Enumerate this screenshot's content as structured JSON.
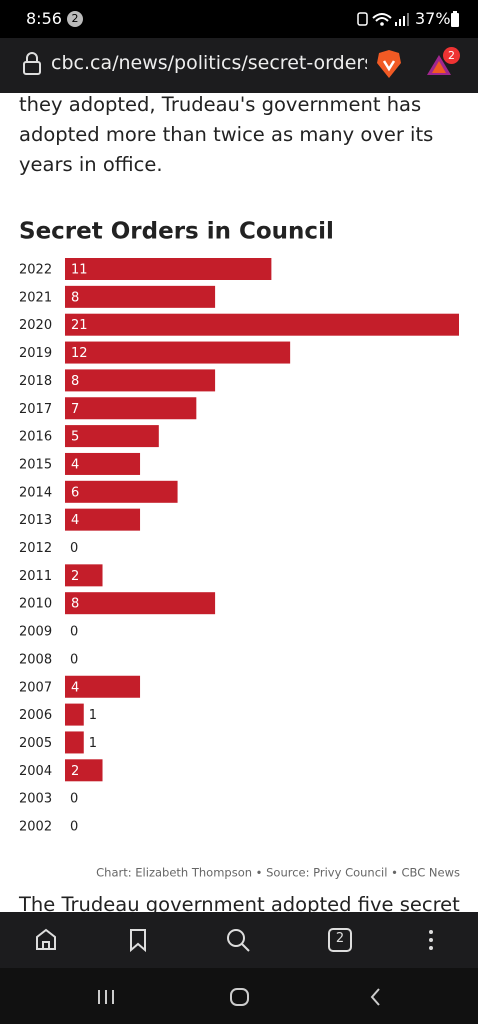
{
  "status_bar": {
    "time": "8:56",
    "notification_count": "2",
    "battery": "37%"
  },
  "browser": {
    "url": "cbc.ca/news/politics/secret-orders",
    "shields_count": "2"
  },
  "article": {
    "paragraph_before": "they adopted, Trudeau's government has adopted more than twice as many over its years in office.",
    "paragraph_after": "The Trudeau government adopted five secret"
  },
  "chart_data": {
    "type": "bar",
    "orientation": "horizontal",
    "title": "Secret Orders in Council",
    "categories": [
      "2022",
      "2021",
      "2020",
      "2019",
      "2018",
      "2017",
      "2016",
      "2015",
      "2014",
      "2013",
      "2012",
      "2011",
      "2010",
      "2009",
      "2008",
      "2007",
      "2006",
      "2005",
      "2004",
      "2003",
      "2002"
    ],
    "values": [
      11,
      8,
      21,
      12,
      8,
      7,
      5,
      4,
      6,
      4,
      0,
      2,
      8,
      0,
      0,
      4,
      1,
      1,
      2,
      0,
      0
    ],
    "color": "#c41e2a",
    "xlim": [
      0,
      21
    ],
    "credit": "Chart: Elizabeth Thompson • Source: Privy Council • CBC News"
  },
  "bottom_bar": {
    "tab_count": "2"
  }
}
